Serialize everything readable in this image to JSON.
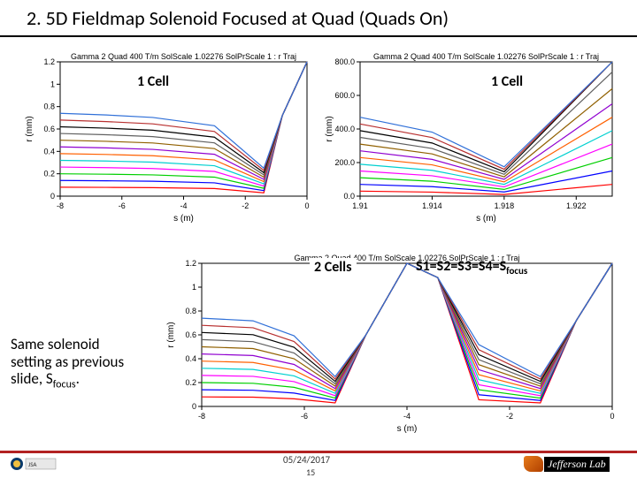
{
  "title": "2. 5D Fieldmap Solenoid Focused at Quad (Quads On)",
  "plot_title": "Gamma 2 Quad 400 T/m SolScale 1.02276 SolPrScale 1 : r Traj",
  "labels": {
    "cell1_left": "1 Cell",
    "cell1_right": "1 Cell",
    "cell2": "2 Cells",
    "s_eq": "S1=S2=S3=S4=S",
    "s_eq_sub": "focus"
  },
  "note_lines": [
    "Same solenoid",
    "setting as previous",
    "slide, S<sub>focus</sub>."
  ],
  "footer": {
    "date": "05/24/2017",
    "page": "15",
    "jlab": "Jefferson Lab"
  },
  "chart_tl": {
    "type": "line",
    "xlim": [
      -8,
      0
    ],
    "ylim": [
      0,
      1.2
    ],
    "xticks": [
      -8,
      -6,
      -4,
      -2,
      0
    ],
    "yticks": [
      0,
      0.2,
      0.4,
      0.6,
      0.8,
      1.0,
      1.2
    ],
    "xlabel": "s (m)",
    "ylabel": "r (mm)",
    "background_color": "#ffffff",
    "colors": [
      "#ff0000",
      "#0000ff",
      "#00cf00",
      "#ff00ff",
      "#00d0d0",
      "#ff6000",
      "#9000d0",
      "#906000",
      "#606060",
      "#000000",
      "#b83030",
      "#3070d8"
    ],
    "series": [
      {
        "y0": 0.08,
        "dip_x": -1.4,
        "dip_y": 0.03,
        "peak": 1.2
      },
      {
        "y0": 0.14,
        "dip_x": -1.4,
        "dip_y": 0.05,
        "peak": 1.2
      },
      {
        "y0": 0.2,
        "dip_x": -1.4,
        "dip_y": 0.07,
        "peak": 1.2
      },
      {
        "y0": 0.26,
        "dip_x": -1.4,
        "dip_y": 0.09,
        "peak": 1.2
      },
      {
        "y0": 0.32,
        "dip_x": -1.4,
        "dip_y": 0.11,
        "peak": 1.2
      },
      {
        "y0": 0.38,
        "dip_x": -1.4,
        "dip_y": 0.13,
        "peak": 1.2
      },
      {
        "y0": 0.44,
        "dip_x": -1.4,
        "dip_y": 0.15,
        "peak": 1.2
      },
      {
        "y0": 0.5,
        "dip_x": -1.4,
        "dip_y": 0.17,
        "peak": 1.2
      },
      {
        "y0": 0.56,
        "dip_x": -1.4,
        "dip_y": 0.19,
        "peak": 1.2
      },
      {
        "y0": 0.62,
        "dip_x": -1.4,
        "dip_y": 0.21,
        "peak": 1.2
      },
      {
        "y0": 0.68,
        "dip_x": -1.4,
        "dip_y": 0.23,
        "peak": 1.2
      },
      {
        "y0": 0.74,
        "dip_x": -1.4,
        "dip_y": 0.25,
        "peak": 1.2
      }
    ]
  },
  "chart_tr": {
    "type": "line",
    "xlim": [
      1.91,
      1.924
    ],
    "ylim": [
      0,
      800
    ],
    "xticks": [
      1.91,
      1.914,
      1.918,
      1.922
    ],
    "xtick_labels": [
      "1.91",
      "1.914",
      "1.918",
      "1.922"
    ],
    "yticks": [
      0,
      200,
      400,
      600,
      800
    ],
    "ytick_labels": [
      "0.0",
      "200.0",
      "400.0",
      "600.0",
      "800.0"
    ],
    "xlabel": "s (m)",
    "ylabel": "r (mm)",
    "background_color": "#ffffff",
    "colors": [
      "#ff0000",
      "#0000ff",
      "#00cf00",
      "#ff00ff",
      "#00d0d0",
      "#ff6000",
      "#9000d0",
      "#906000",
      "#606060",
      "#000000",
      "#b83030",
      "#3070d8"
    ],
    "series": [
      {
        "ystart": 30,
        "dip_x": 1.918,
        "dip_y": 10,
        "yend": 70
      },
      {
        "ystart": 70,
        "dip_x": 1.918,
        "dip_y": 25,
        "yend": 150
      },
      {
        "ystart": 110,
        "dip_x": 1.918,
        "dip_y": 40,
        "yend": 230
      },
      {
        "ystart": 150,
        "dip_x": 1.918,
        "dip_y": 55,
        "yend": 310
      },
      {
        "ystart": 190,
        "dip_x": 1.918,
        "dip_y": 70,
        "yend": 390
      },
      {
        "ystart": 230,
        "dip_x": 1.918,
        "dip_y": 85,
        "yend": 470
      },
      {
        "ystart": 270,
        "dip_x": 1.918,
        "dip_y": 100,
        "yend": 550
      },
      {
        "ystart": 310,
        "dip_x": 1.918,
        "dip_y": 115,
        "yend": 640
      },
      {
        "ystart": 350,
        "dip_x": 1.918,
        "dip_y": 130,
        "yend": 740
      },
      {
        "ystart": 390,
        "dip_x": 1.918,
        "dip_y": 145,
        "yend": 800
      },
      {
        "ystart": 430,
        "dip_x": 1.918,
        "dip_y": 160,
        "yend": 800
      },
      {
        "ystart": 470,
        "dip_x": 1.918,
        "dip_y": 175,
        "yend": 800
      }
    ]
  },
  "chart_b": {
    "type": "line",
    "xlim": [
      -8,
      0
    ],
    "ylim": [
      0,
      1.2
    ],
    "xticks": [
      -8,
      -6,
      -4,
      -2,
      0
    ],
    "yticks": [
      0,
      0.2,
      0.4,
      0.6,
      0.8,
      1.0,
      1.2
    ],
    "xlabel": "s (m)",
    "ylabel": "r (mm)",
    "background_color": "#ffffff",
    "colors": [
      "#ff0000",
      "#0000ff",
      "#00cf00",
      "#ff00ff",
      "#00d0d0",
      "#ff6000",
      "#9000d0",
      "#906000",
      "#606060",
      "#000000",
      "#b83030",
      "#3070d8"
    ],
    "series": [
      {
        "y0": 0.08,
        "dips": [
          [
            -5.4,
            0.03
          ],
          [
            -1.4,
            0.03
          ]
        ],
        "peak_x": -4.0,
        "peak_y": 1.2
      },
      {
        "y0": 0.14,
        "dips": [
          [
            -5.4,
            0.05
          ],
          [
            -1.4,
            0.05
          ]
        ],
        "peak_x": -4.0,
        "peak_y": 1.2
      },
      {
        "y0": 0.2,
        "dips": [
          [
            -5.4,
            0.07
          ],
          [
            -1.4,
            0.07
          ]
        ],
        "peak_x": -4.0,
        "peak_y": 1.2
      },
      {
        "y0": 0.26,
        "dips": [
          [
            -5.4,
            0.09
          ],
          [
            -1.4,
            0.09
          ]
        ],
        "peak_x": -4.0,
        "peak_y": 1.2
      },
      {
        "y0": 0.32,
        "dips": [
          [
            -5.4,
            0.11
          ],
          [
            -1.4,
            0.11
          ]
        ],
        "peak_x": -4.0,
        "peak_y": 1.2
      },
      {
        "y0": 0.38,
        "dips": [
          [
            -5.4,
            0.13
          ],
          [
            -1.4,
            0.13
          ]
        ],
        "peak_x": -4.0,
        "peak_y": 1.2
      },
      {
        "y0": 0.44,
        "dips": [
          [
            -5.4,
            0.15
          ],
          [
            -1.4,
            0.15
          ]
        ],
        "peak_x": -4.0,
        "peak_y": 1.2
      },
      {
        "y0": 0.5,
        "dips": [
          [
            -5.4,
            0.17
          ],
          [
            -1.4,
            0.17
          ]
        ],
        "peak_x": -4.0,
        "peak_y": 1.2
      },
      {
        "y0": 0.56,
        "dips": [
          [
            -5.4,
            0.19
          ],
          [
            -1.4,
            0.19
          ]
        ],
        "peak_x": -4.0,
        "peak_y": 1.2
      },
      {
        "y0": 0.62,
        "dips": [
          [
            -5.4,
            0.21
          ],
          [
            -1.4,
            0.21
          ]
        ],
        "peak_x": -4.0,
        "peak_y": 1.2
      },
      {
        "y0": 0.68,
        "dips": [
          [
            -5.4,
            0.23
          ],
          [
            -1.4,
            0.23
          ]
        ],
        "peak_x": -4.0,
        "peak_y": 1.2
      },
      {
        "y0": 0.74,
        "dips": [
          [
            -5.4,
            0.25
          ],
          [
            -1.4,
            0.25
          ]
        ],
        "peak_x": -4.0,
        "peak_y": 1.2
      }
    ]
  }
}
